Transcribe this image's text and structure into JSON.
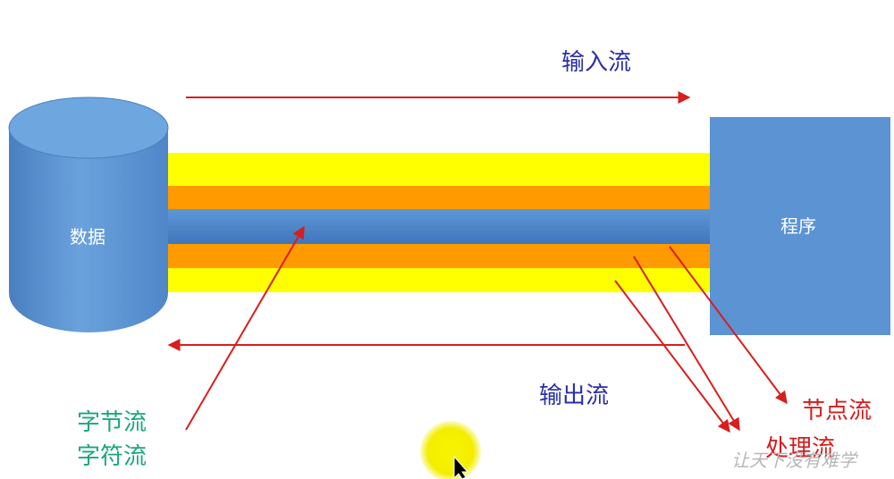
{
  "diagram": {
    "data_store_label": "数据",
    "program_label": "程序",
    "input_stream_label": "输入流",
    "output_stream_label": "输出流",
    "byte_stream_label": "字节流",
    "char_stream_label": "字符流",
    "node_stream_label": "节点流",
    "processing_stream_label": "处理流",
    "watermark": "让天下没有难学"
  },
  "colors": {
    "shape_blue": "#5b93d3",
    "pipe_yellow": "#ffff00",
    "pipe_orange": "#ff9b00",
    "arrow_red": "#d81e1e",
    "label_blue": "#2a2fa6",
    "label_green": "#1aa67f",
    "cursor_highlight": "#f5f100"
  }
}
